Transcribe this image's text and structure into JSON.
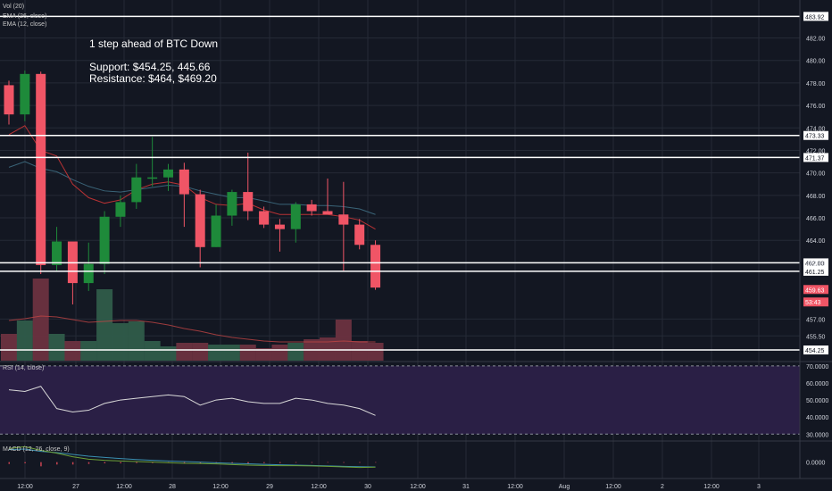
{
  "indicators": {
    "vol": "Vol (20)",
    "ema_26": "EMA (26, close)",
    "ema_12": "EMA (12, close)",
    "rsi": "RSI (14, close)",
    "macd": "MACD (12, 26, close, 9)"
  },
  "annotation": {
    "line1": "1 step ahead of BTC Down",
    "line2": "Support: $454.25, 445.66",
    "line3": "Resistance: $464, $469.20"
  },
  "colors": {
    "background": "#131722",
    "grid": "#252a36",
    "up": "#1e8a3a",
    "down": "#f05566",
    "ema_fast": "#b83234",
    "ema_slow": "#3a6478",
    "rsi_band": "#2a1f45",
    "macd_line": "#6da037",
    "signal_line": "#3a8fb0"
  },
  "chart_data": {
    "type": "candlestick",
    "y_axis_ticks": [
      "482.00",
      "480.00",
      "478.00",
      "476.00",
      "474.00",
      "472.00",
      "470.00",
      "468.00",
      "466.00",
      "464.00",
      "462.00",
      "457.00",
      "455.50"
    ],
    "ylim": [
      453.3,
      484.9
    ],
    "x_axis_ticks": [
      "12:00",
      "27",
      "12:00",
      "28",
      "12:00",
      "29",
      "12:00",
      "30",
      "12:00",
      "31",
      "12:00",
      "Aug",
      "12:00",
      "2",
      "12:00",
      "3"
    ],
    "horizontal_levels": [
      {
        "value": 483.92,
        "label": "483.92"
      },
      {
        "value": 473.33,
        "label": "473.33"
      },
      {
        "value": 471.37,
        "label": "471.37"
      },
      {
        "value": 462.0,
        "label": "462.00"
      },
      {
        "value": 461.25,
        "label": "461.25"
      },
      {
        "value": 454.25,
        "label": "454.25"
      }
    ],
    "price_tags": [
      {
        "value": 459.63,
        "label": "459.63"
      },
      {
        "value": 458.6,
        "label": "53:43"
      }
    ],
    "candles": [
      {
        "o": 477.8,
        "h": 478.2,
        "l": 474.3,
        "c": 475.2
      },
      {
        "o": 475.2,
        "h": 479.1,
        "l": 474.6,
        "c": 478.8
      },
      {
        "o": 478.8,
        "h": 479.0,
        "l": 461.0,
        "c": 461.8
      },
      {
        "o": 461.8,
        "h": 465.2,
        "l": 461.3,
        "c": 463.9
      },
      {
        "o": 463.9,
        "h": 463.9,
        "l": 458.3,
        "c": 460.2
      },
      {
        "o": 460.2,
        "h": 463.8,
        "l": 459.5,
        "c": 461.9
      },
      {
        "o": 461.9,
        "h": 466.6,
        "l": 461.0,
        "c": 466.1
      },
      {
        "o": 466.1,
        "h": 468.0,
        "l": 465.2,
        "c": 467.4
      },
      {
        "o": 467.4,
        "h": 470.8,
        "l": 466.8,
        "c": 469.6
      },
      {
        "o": 469.6,
        "h": 473.2,
        "l": 468.8,
        "c": 469.6
      },
      {
        "o": 469.6,
        "h": 470.8,
        "l": 468.4,
        "c": 470.3
      },
      {
        "o": 470.3,
        "h": 470.9,
        "l": 465.2,
        "c": 468.1
      },
      {
        "o": 468.1,
        "h": 468.5,
        "l": 461.6,
        "c": 463.4
      },
      {
        "o": 463.4,
        "h": 467.2,
        "l": 463.4,
        "c": 466.2
      },
      {
        "o": 466.2,
        "h": 468.5,
        "l": 465.3,
        "c": 468.3
      },
      {
        "o": 468.3,
        "h": 471.8,
        "l": 465.8,
        "c": 466.6
      },
      {
        "o": 466.6,
        "h": 467.0,
        "l": 465.1,
        "c": 465.4
      },
      {
        "o": 465.4,
        "h": 465.9,
        "l": 463.0,
        "c": 465.0
      },
      {
        "o": 465.0,
        "h": 467.4,
        "l": 463.8,
        "c": 467.2
      },
      {
        "o": 467.2,
        "h": 467.6,
        "l": 466.2,
        "c": 466.6
      },
      {
        "o": 466.6,
        "h": 469.5,
        "l": 466.4,
        "c": 466.3
      },
      {
        "o": 466.3,
        "h": 469.2,
        "l": 461.3,
        "c": 465.4
      },
      {
        "o": 465.4,
        "h": 465.9,
        "l": 463.2,
        "c": 463.6
      },
      {
        "o": 463.6,
        "h": 464.0,
        "l": 459.6,
        "c": 459.8
      }
    ],
    "volume": [
      {
        "v": 0.3,
        "d": "down"
      },
      {
        "v": 0.45,
        "d": "up"
      },
      {
        "v": 0.92,
        "d": "down"
      },
      {
        "v": 0.3,
        "d": "up"
      },
      {
        "v": 0.22,
        "d": "down"
      },
      {
        "v": 0.22,
        "d": "up"
      },
      {
        "v": 0.8,
        "d": "up"
      },
      {
        "v": 0.42,
        "d": "up"
      },
      {
        "v": 0.44,
        "d": "up"
      },
      {
        "v": 0.22,
        "d": "up"
      },
      {
        "v": 0.16,
        "d": "up"
      },
      {
        "v": 0.2,
        "d": "down"
      },
      {
        "v": 0.2,
        "d": "down"
      },
      {
        "v": 0.18,
        "d": "up"
      },
      {
        "v": 0.18,
        "d": "up"
      },
      {
        "v": 0.18,
        "d": "down"
      },
      {
        "v": 0.14,
        "d": "down"
      },
      {
        "v": 0.18,
        "d": "down"
      },
      {
        "v": 0.2,
        "d": "up"
      },
      {
        "v": 0.24,
        "d": "down"
      },
      {
        "v": 0.26,
        "d": "down"
      },
      {
        "v": 0.46,
        "d": "down"
      },
      {
        "v": 0.22,
        "d": "down"
      },
      {
        "v": 0.2,
        "d": "down"
      }
    ],
    "ema_fast": [
      473.4,
      474.2,
      472.0,
      471.5,
      469.0,
      467.8,
      467.3,
      467.6,
      468.5,
      469.0,
      469.2,
      468.9,
      467.8,
      467.2,
      467.1,
      467.3,
      466.7,
      466.3,
      466.3,
      466.3,
      466.3,
      466.1,
      465.8,
      465.0
    ],
    "ema_slow": [
      470.5,
      471.0,
      470.4,
      470.1,
      469.4,
      468.8,
      468.4,
      468.3,
      468.5,
      468.7,
      468.9,
      468.8,
      468.4,
      468.1,
      467.8,
      467.8,
      467.5,
      467.2,
      467.2,
      467.1,
      467.1,
      467.0,
      466.8,
      466.3
    ],
    "volume_ma": [
      0.45,
      0.47,
      0.5,
      0.49,
      0.46,
      0.43,
      0.44,
      0.45,
      0.45,
      0.43,
      0.4,
      0.36,
      0.33,
      0.29,
      0.26,
      0.24,
      0.22,
      0.21,
      0.21,
      0.21,
      0.21,
      0.22,
      0.21,
      0.21
    ],
    "rsi": {
      "ticks": [
        "70.0000",
        "60.0000",
        "50.0000",
        "40.0000",
        "30.0000"
      ],
      "ylim": [
        26.5,
        72.0
      ],
      "upper": 70,
      "lower": 30,
      "values": [
        56,
        55,
        58,
        45,
        43,
        44,
        48,
        50,
        51,
        52,
        53,
        52,
        47,
        50,
        51,
        49,
        48,
        48,
        51,
        50,
        48,
        47,
        45,
        41
      ]
    },
    "macd": {
      "ticks": [
        "0.0000"
      ],
      "ylim": [
        -1.3,
        1.7
      ],
      "macd_line": [
        1.15,
        1.3,
        1.0,
        0.75,
        0.45,
        0.25,
        0.15,
        0.1,
        0.05,
        0.0,
        -0.05,
        -0.1,
        -0.12,
        -0.15,
        -0.2,
        -0.25,
        -0.28,
        -0.3,
        -0.3,
        -0.32,
        -0.35,
        -0.4,
        -0.45,
        -0.42
      ],
      "signal_line": [
        1.05,
        1.1,
        0.9,
        0.8,
        0.65,
        0.5,
        0.4,
        0.3,
        0.22,
        0.15,
        0.1,
        0.05,
        0.0,
        -0.05,
        -0.1,
        -0.14,
        -0.18,
        -0.22,
        -0.25,
        -0.28,
        -0.32,
        -0.35,
        -0.38,
        -0.4
      ],
      "histogram": [
        -0.15,
        -0.1,
        -0.35,
        -0.2,
        -0.2,
        -0.15,
        -0.1,
        -0.1,
        -0.08,
        -0.08,
        -0.08,
        -0.08,
        -0.1,
        -0.1,
        -0.1,
        -0.1,
        -0.08,
        -0.08,
        -0.05,
        -0.05,
        -0.04,
        -0.05,
        -0.05,
        -0.04
      ]
    }
  }
}
